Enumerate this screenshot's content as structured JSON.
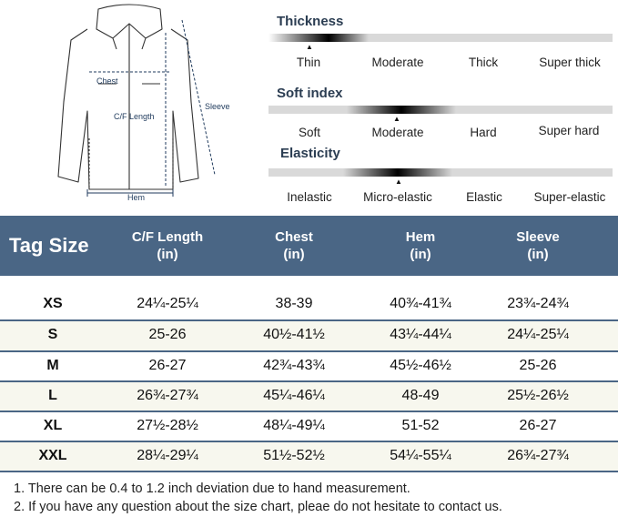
{
  "diagram": {
    "labels": {
      "chest": "Chest",
      "cf_length": "C/F Length",
      "sleeve": "Sleeve",
      "hem": "Hem"
    }
  },
  "properties": [
    {
      "title": "Thickness",
      "options": [
        "Thin",
        "Moderate",
        "Thick",
        "Super thick"
      ],
      "selected": "Thin"
    },
    {
      "title": "Soft index",
      "options": [
        "Soft",
        "Moderate",
        "Hard",
        "Super hard"
      ],
      "selected": "Moderate"
    },
    {
      "title": "Elasticity",
      "options": [
        "Inelastic",
        "Micro-elastic",
        "Elastic",
        "Super-elastic"
      ],
      "selected": "Micro-elastic"
    }
  ],
  "marker_glyph": "▲",
  "table": {
    "header": {
      "tag": "Tag Size",
      "columns": [
        {
          "line1": "C/F Length",
          "line2": "(in)"
        },
        {
          "line1": "Chest",
          "line2": "(in)"
        },
        {
          "line1": "Hem",
          "line2": "(in)"
        },
        {
          "line1": "Sleeve",
          "line2": "(in)"
        }
      ]
    },
    "rows": [
      {
        "size": "XS",
        "cf": "24¼-25¼",
        "chest": "38-39",
        "hem": "40¾-41¾",
        "sleeve": "23¾-24¾"
      },
      {
        "size": "S",
        "cf": "25-26",
        "chest": "40½-41½",
        "hem": "43¼-44¼",
        "sleeve": "24¼-25¼"
      },
      {
        "size": "M",
        "cf": "26-27",
        "chest": "42¾-43¾",
        "hem": "45½-46½",
        "sleeve": "25-26"
      },
      {
        "size": "L",
        "cf": "26¾-27¾",
        "chest": "45¼-46¼",
        "hem": "48-49",
        "sleeve": "25½-26½"
      },
      {
        "size": "XL",
        "cf": "27½-28½",
        "chest": "48¼-49¼",
        "hem": "51-52",
        "sleeve": "26-27"
      },
      {
        "size": "XXL",
        "cf": "28¼-29¼",
        "chest": "51½-52½",
        "hem": "54¼-55¼",
        "sleeve": "26¾-27¾"
      }
    ]
  },
  "notes": [
    "1. There can be 0.4 to 1.2 inch deviation due to hand measurement.",
    "2. If you have any question about the size chart, pleae do not hesitate to contact us."
  ],
  "colors": {
    "header_bg": "#4a6685",
    "row_alt": "#f7f7ee",
    "scale_track": "#d9d9d9",
    "dimension_lines": "#1f3a5c"
  }
}
